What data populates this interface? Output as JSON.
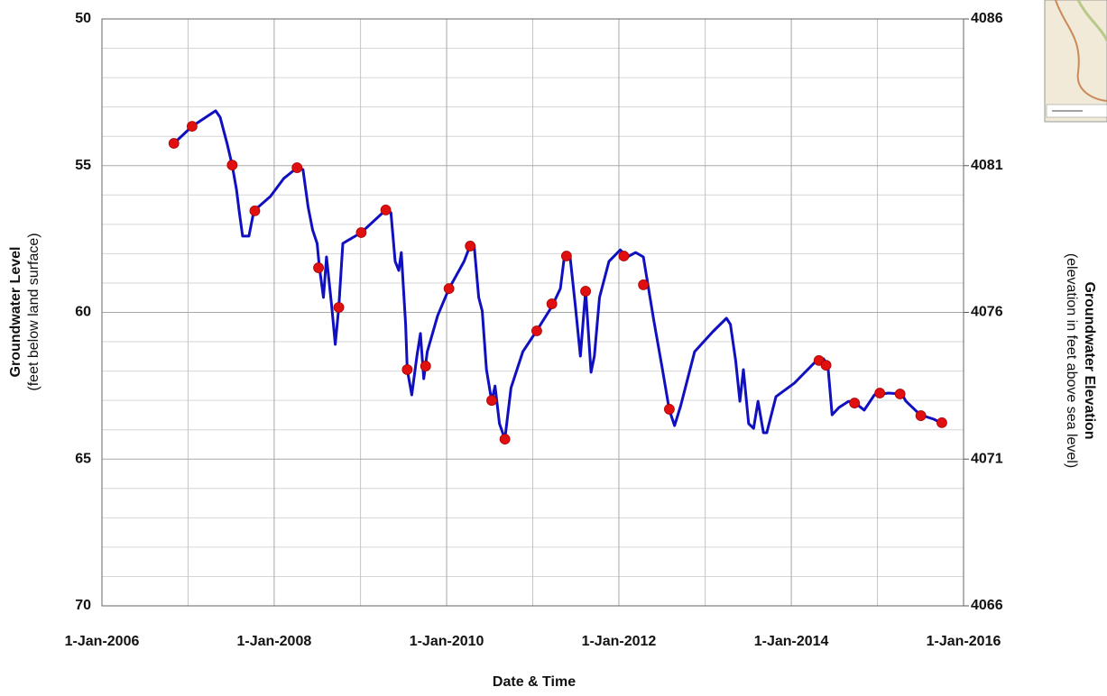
{
  "chart_data": {
    "type": "line",
    "x_label": "Date & Time",
    "y_label": "Groundwater Level",
    "y_sublabel": "(feet below land surface)",
    "y2_label": "Groundwater Elevation",
    "y2_sublabel": "(elevation in feet above sea level)",
    "xlim": [
      "2006-01-01",
      "2016-01-01"
    ],
    "xticks": [
      {
        "value": "2006-01-01",
        "label": "1-Jan-2006"
      },
      {
        "value": "2008-01-01",
        "label": "1-Jan-2008"
      },
      {
        "value": "2010-01-01",
        "label": "1-Jan-2010"
      },
      {
        "value": "2012-01-01",
        "label": "1-Jan-2012"
      },
      {
        "value": "2014-01-01",
        "label": "1-Jan-2014"
      },
      {
        "value": "2016-01-01",
        "label": "1-Jan-2016"
      }
    ],
    "x_minor_ticks": [
      "2007-01-01",
      "2009-01-01",
      "2011-01-01",
      "2013-01-01",
      "2015-01-01"
    ],
    "ylim": [
      50,
      70
    ],
    "y_reversed": true,
    "yticks": [
      50,
      55,
      60,
      65,
      70
    ],
    "y_minor_ticks": [
      51,
      52,
      53,
      54,
      56,
      57,
      58,
      59,
      61,
      62,
      63,
      64,
      66,
      67,
      68,
      69
    ],
    "y2lim": [
      4066,
      4086
    ],
    "y2ticks": [
      4086,
      4081,
      4076,
      4071,
      4066
    ],
    "grid": true,
    "series": [
      {
        "style": "line",
        "color": "#1010c0",
        "x": [
          "2006-11-02",
          "2007-01-18",
          "2007-04-28",
          "2007-05-17",
          "2007-06-16",
          "2007-07-07",
          "2007-07-25",
          "2007-08-06",
          "2007-08-20",
          "2007-09-16",
          "2007-10-07",
          "2007-12-16",
          "2008-02-10",
          "2008-04-07",
          "2008-05-02",
          "2008-05-24",
          "2008-06-12",
          "2008-07-01",
          "2008-07-11",
          "2008-07-28",
          "2008-08-10",
          "2008-09-01",
          "2008-09-16",
          "2008-10-01",
          "2008-10-18",
          "2009-01-04",
          "2009-04-18",
          "2009-05-10",
          "2009-05-28",
          "2009-06-12",
          "2009-06-23",
          "2009-07-11",
          "2009-07-18",
          "2009-08-06",
          "2009-08-28",
          "2009-09-12",
          "2009-09-26",
          "2009-10-11",
          "2009-11-24",
          "2010-01-11",
          "2010-03-16",
          "2010-04-11",
          "2010-04-28",
          "2010-05-17",
          "2010-06-01",
          "2010-06-19",
          "2010-07-11",
          "2010-07-25",
          "2010-08-13",
          "2010-09-05",
          "2010-10-01",
          "2010-11-20",
          "2011-01-22",
          "2011-03-23",
          "2011-04-28",
          "2011-05-17",
          "2011-06-08",
          "2011-07-01",
          "2011-07-22",
          "2011-08-13",
          "2011-09-05",
          "2011-09-19",
          "2011-10-11",
          "2011-11-20",
          "2012-01-07",
          "2012-02-06",
          "2012-03-12",
          "2012-04-14",
          "2012-05-28",
          "2012-07-04",
          "2012-08-02",
          "2012-08-24",
          "2012-09-19",
          "2012-11-17",
          "2013-02-02",
          "2013-04-01",
          "2013-04-18",
          "2013-05-10",
          "2013-05-28",
          "2013-06-12",
          "2013-07-04",
          "2013-07-25",
          "2013-08-13",
          "2013-09-05",
          "2013-09-19",
          "2013-10-28",
          "2014-01-14",
          "2014-04-18",
          "2014-05-17",
          "2014-06-05",
          "2014-06-23",
          "2014-07-22",
          "2014-09-01",
          "2014-10-04",
          "2014-11-06",
          "2014-12-19",
          "2015-02-17",
          "2015-04-14",
          "2015-05-02",
          "2015-07-01",
          "2015-08-28",
          "2015-10-04"
        ],
        "values": [
          54.24,
          53.66,
          53.13,
          53.35,
          54.27,
          54.98,
          55.81,
          56.57,
          57.4,
          57.4,
          56.54,
          56.05,
          55.44,
          55.07,
          55.13,
          56.42,
          57.19,
          57.65,
          58.48,
          59.49,
          58.11,
          59.8,
          61.09,
          59.83,
          57.65,
          57.28,
          56.51,
          56.6,
          58.26,
          58.57,
          57.96,
          60.41,
          61.95,
          62.81,
          61.49,
          60.72,
          62.26,
          61.34,
          60.11,
          59.19,
          58.26,
          57.71,
          57.74,
          59.49,
          59.95,
          61.95,
          63.03,
          62.51,
          63.79,
          64.32,
          62.57,
          61.34,
          60.57,
          59.8,
          59.19,
          57.96,
          58.08,
          59.8,
          61.49,
          59.25,
          62.04,
          61.49,
          59.49,
          58.26,
          57.87,
          58.11,
          57.96,
          58.11,
          60.26,
          61.95,
          63.33,
          63.86,
          63.18,
          61.34,
          60.66,
          60.2,
          60.41,
          61.64,
          63.03,
          61.95,
          63.79,
          63.95,
          63.03,
          64.1,
          64.1,
          62.87,
          62.41,
          61.64,
          61.58,
          61.8,
          63.49,
          63.24,
          63.03,
          63.12,
          63.33,
          62.81,
          62.75,
          62.78,
          63.03,
          63.49,
          63.64,
          63.79
        ]
      },
      {
        "style": "points",
        "color": "#e01010",
        "x": [
          "2006-11-02",
          "2007-01-18",
          "2007-07-07",
          "2007-10-11",
          "2008-04-07",
          "2008-07-07",
          "2008-10-01",
          "2009-01-04",
          "2009-04-18",
          "2009-07-18",
          "2009-10-04",
          "2010-01-11",
          "2010-04-11",
          "2010-07-11",
          "2010-09-05",
          "2011-01-18",
          "2011-03-23",
          "2011-05-24",
          "2011-08-13",
          "2012-01-22",
          "2012-04-14",
          "2012-08-02",
          "2014-04-28",
          "2014-05-28",
          "2014-09-26",
          "2015-01-11",
          "2015-04-07",
          "2015-07-04",
          "2015-10-01"
        ],
        "values": [
          54.24,
          53.66,
          54.98,
          56.54,
          55.07,
          58.48,
          59.83,
          57.28,
          56.51,
          61.95,
          61.83,
          59.19,
          57.74,
          63.0,
          64.32,
          60.63,
          59.71,
          58.08,
          59.28,
          58.08,
          59.06,
          63.3,
          61.64,
          61.8,
          63.09,
          62.75,
          62.78,
          63.52,
          63.76
        ]
      }
    ]
  }
}
